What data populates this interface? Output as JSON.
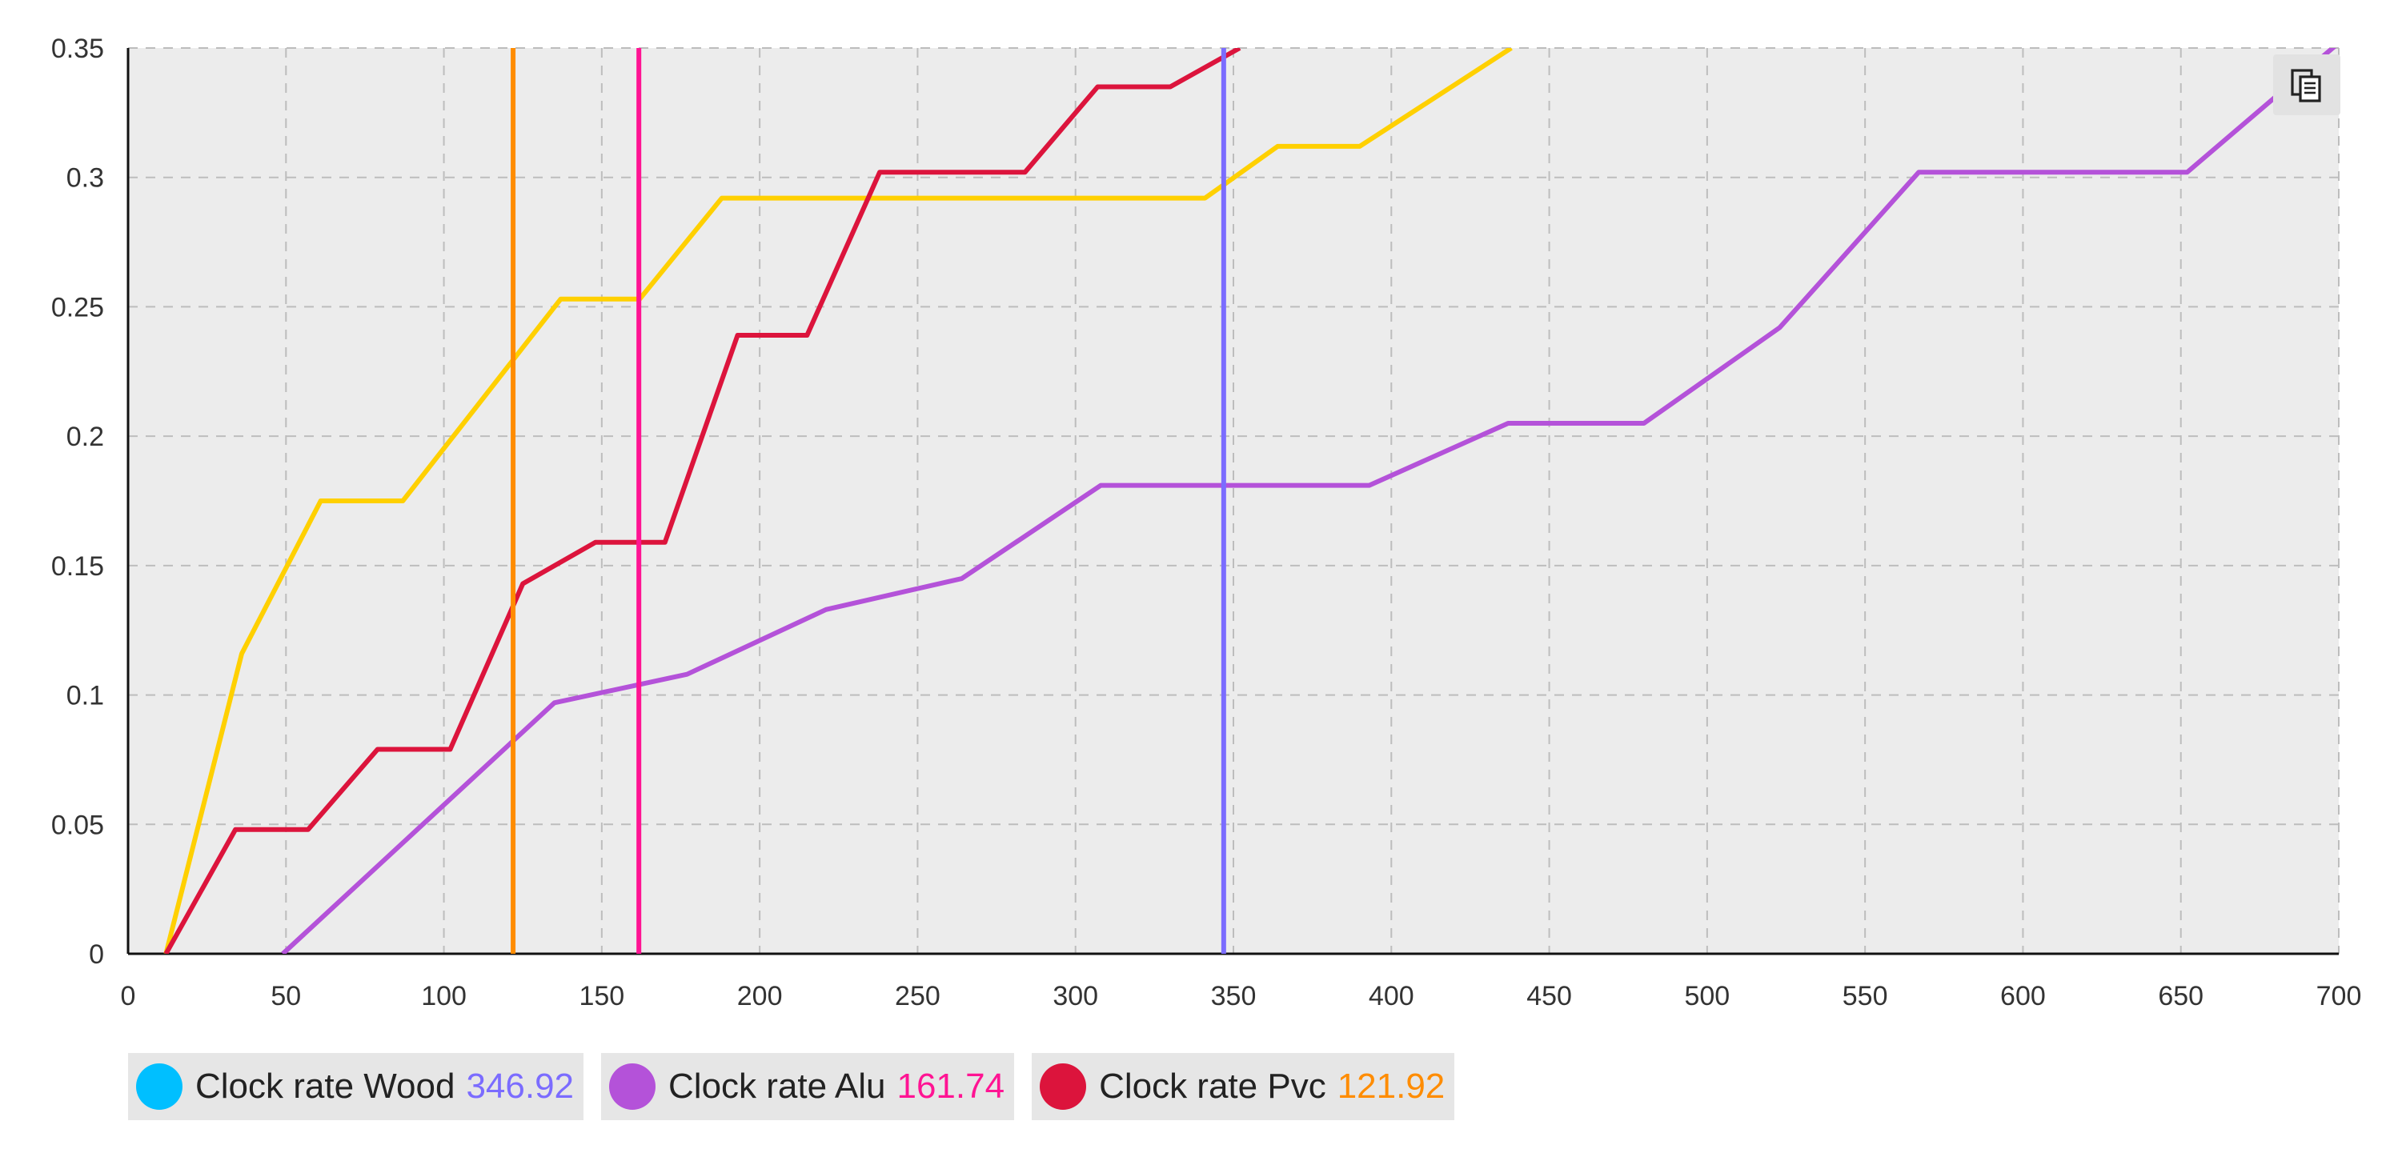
{
  "chart_data": {
    "type": "line",
    "xlim": [
      0,
      700
    ],
    "ylim": [
      0,
      0.35
    ],
    "x_ticks": [
      "0",
      "50",
      "100",
      "150",
      "200",
      "250",
      "300",
      "350",
      "400",
      "450",
      "500",
      "550",
      "600",
      "650",
      "700"
    ],
    "y_ticks": [
      "0",
      "0.05",
      "0.1",
      "0.15",
      "0.2",
      "0.25",
      "0.3",
      "0.35"
    ],
    "grid": true,
    "legend_position": "bottom-left",
    "series": [
      {
        "name": "Clock rate Wood",
        "legend_value": "346.92",
        "dot_color": "#00bfff",
        "line_color": "#ffd000",
        "marker_color": "#7b6cff",
        "marker_x": 346.92,
        "points": [
          [
            12,
            0
          ],
          [
            36,
            0.116
          ],
          [
            61,
            0.175
          ],
          [
            87,
            0.175
          ],
          [
            137,
            0.253
          ],
          [
            162,
            0.253
          ],
          [
            188,
            0.292
          ],
          [
            341,
            0.292
          ],
          [
            364,
            0.312
          ],
          [
            390,
            0.312
          ],
          [
            438,
            0.35
          ]
        ]
      },
      {
        "name": "Clock rate Alu",
        "legend_value": "161.74",
        "dot_color": "#b452d9",
        "line_color": "#b452d9",
        "marker_color": "#ff1493",
        "marker_x": 161.74,
        "points": [
          [
            49,
            0
          ],
          [
            135,
            0.097
          ],
          [
            177,
            0.108
          ],
          [
            221,
            0.133
          ],
          [
            264,
            0.145
          ],
          [
            308,
            0.181
          ],
          [
            393,
            0.181
          ],
          [
            437,
            0.205
          ],
          [
            480,
            0.205
          ],
          [
            523,
            0.242
          ],
          [
            567,
            0.302
          ],
          [
            652,
            0.302
          ],
          [
            700,
            0.352
          ]
        ]
      },
      {
        "name": "Clock rate Pvc",
        "legend_value": "121.92",
        "dot_color": "#dc143c",
        "line_color": "#dc143c",
        "marker_color": "#ff8c00",
        "marker_x": 121.92,
        "points": [
          [
            12,
            0
          ],
          [
            34,
            0.048
          ],
          [
            57,
            0.048
          ],
          [
            79,
            0.079
          ],
          [
            102,
            0.079
          ],
          [
            125,
            0.143
          ],
          [
            148,
            0.159
          ],
          [
            170,
            0.159
          ],
          [
            193,
            0.239
          ],
          [
            215,
            0.239
          ],
          [
            238,
            0.302
          ],
          [
            284,
            0.302
          ],
          [
            307,
            0.335
          ],
          [
            330,
            0.335
          ],
          [
            352,
            0.35
          ]
        ]
      }
    ]
  },
  "toolbar": {
    "copy_icon": "copy-icon"
  }
}
